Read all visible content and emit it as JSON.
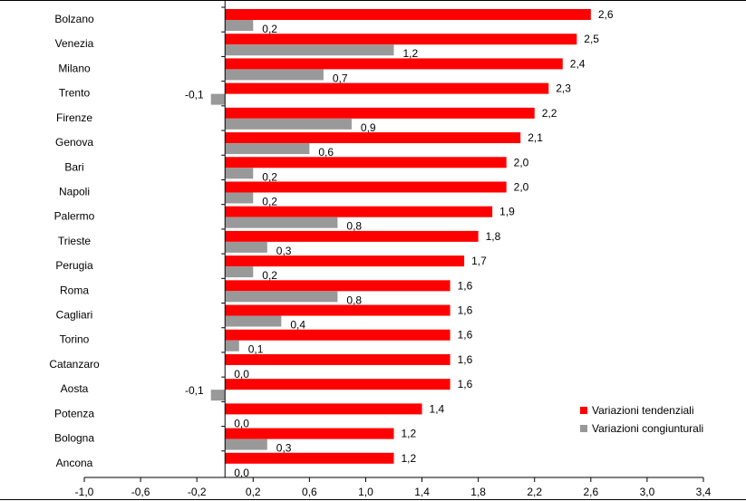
{
  "chart_data": {
    "type": "bar",
    "orientation": "horizontal",
    "categories": [
      "Bolzano",
      "Venezia",
      "Milano",
      "Trento",
      "Firenze",
      "Genova",
      "Bari",
      "Napoli",
      "Palermo",
      "Trieste",
      "Perugia",
      "Roma",
      "Cagliari",
      "Torino",
      "Catanzaro",
      "Aosta",
      "Potenza",
      "Bologna",
      "Ancona"
    ],
    "series": [
      {
        "name": "Variazioni tendenziali",
        "color": "#ff0000",
        "values": [
          2.6,
          2.5,
          2.4,
          2.3,
          2.2,
          2.1,
          2.0,
          2.0,
          1.9,
          1.8,
          1.7,
          1.6,
          1.6,
          1.6,
          1.6,
          1.6,
          1.4,
          1.2,
          1.2
        ],
        "labels": [
          "2,6",
          "2,5",
          "2,4",
          "2,3",
          "2,2",
          "2,1",
          "2,0",
          "2,0",
          "1,9",
          "1,8",
          "1,7",
          "1,6",
          "1,6",
          "1,6",
          "1,6",
          "1,6",
          "1,4",
          "1,2",
          "1,2"
        ]
      },
      {
        "name": "Variazioni congiunturali",
        "color": "#999999",
        "values": [
          0.2,
          1.2,
          0.7,
          -0.1,
          0.9,
          0.6,
          0.2,
          0.2,
          0.8,
          0.3,
          0.2,
          0.8,
          0.4,
          0.1,
          0.0,
          -0.1,
          0.0,
          0.3,
          0.0
        ],
        "labels": [
          "0,2",
          "1,2",
          "0,7",
          "-0,1",
          "0,9",
          "0,6",
          "0,2",
          "0,2",
          "0,8",
          "0,3",
          "0,2",
          "0,8",
          "0,4",
          "0,1",
          "0,0",
          "-0,1",
          "0,0",
          "0,3",
          "0,0"
        ]
      }
    ],
    "xlim": [
      -1.0,
      3.4
    ],
    "xticks": [
      -1.0,
      -0.6,
      -0.2,
      0.2,
      0.6,
      1.0,
      1.4,
      1.8,
      2.2,
      2.6,
      3.0,
      3.4
    ],
    "xtick_labels": [
      "-1,0",
      "-0,6",
      "-0,2",
      "0,2",
      "0,6",
      "1,0",
      "1,4",
      "1,8",
      "2,2",
      "2,6",
      "3,0",
      "3,4"
    ],
    "grid": false,
    "legend_position": "bottom-right"
  }
}
